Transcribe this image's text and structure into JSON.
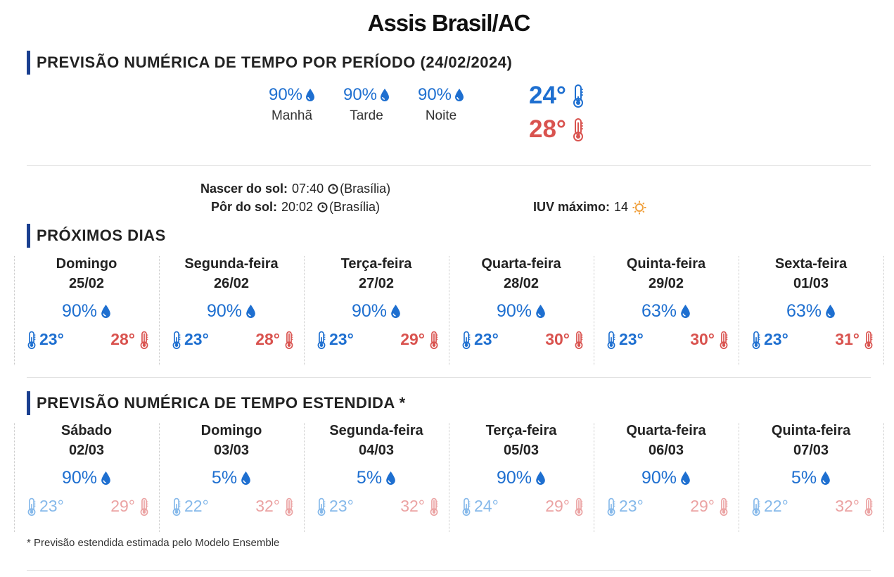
{
  "title": "Assis Brasil/AC",
  "sections": {
    "periodo": "PREVISÃO NUMÉRICA DE TEMPO POR PERÍODO (24/02/2024)",
    "proximos": "PRÓXIMOS DIAS",
    "estendida": "PREVISÃO NUMÉRICA DE TEMPO ESTENDIDA *"
  },
  "periods": [
    {
      "pct": "90%",
      "name": "Manhã"
    },
    {
      "pct": "90%",
      "name": "Tarde"
    },
    {
      "pct": "90%",
      "name": "Noite"
    }
  ],
  "today": {
    "min": "24°",
    "max": "28°"
  },
  "sun": {
    "rise_label": "Nascer do sol:",
    "rise_time": "07:40",
    "rise_tz": "(Brasília)",
    "set_label": "Pôr do sol:",
    "set_time": "20:02",
    "set_tz": "(Brasília)"
  },
  "uv": {
    "label": "IUV máximo:",
    "value": "14"
  },
  "next_days": [
    {
      "day": "Domingo",
      "date": "25/02",
      "pct": "90%",
      "min": "23°",
      "max": "28°"
    },
    {
      "day": "Segunda-feira",
      "date": "26/02",
      "pct": "90%",
      "min": "23°",
      "max": "28°"
    },
    {
      "day": "Terça-feira",
      "date": "27/02",
      "pct": "90%",
      "min": "23°",
      "max": "29°"
    },
    {
      "day": "Quarta-feira",
      "date": "28/02",
      "pct": "90%",
      "min": "23°",
      "max": "30°"
    },
    {
      "day": "Quinta-feira",
      "date": "29/02",
      "pct": "63%",
      "min": "23°",
      "max": "30°"
    },
    {
      "day": "Sexta-feira",
      "date": "01/03",
      "pct": "63%",
      "min": "23°",
      "max": "31°"
    }
  ],
  "extended_days": [
    {
      "day": "Sábado",
      "date": "02/03",
      "pct": "90%",
      "min": "23°",
      "max": "29°"
    },
    {
      "day": "Domingo",
      "date": "03/03",
      "pct": "5%",
      "min": "22°",
      "max": "32°"
    },
    {
      "day": "Segunda-feira",
      "date": "04/03",
      "pct": "5%",
      "min": "23°",
      "max": "32°"
    },
    {
      "day": "Terça-feira",
      "date": "05/03",
      "pct": "90%",
      "min": "24°",
      "max": "29°"
    },
    {
      "day": "Quarta-feira",
      "date": "06/03",
      "pct": "90%",
      "min": "23°",
      "max": "29°"
    },
    {
      "day": "Quinta-feira",
      "date": "07/03",
      "pct": "5%",
      "min": "22°",
      "max": "32°"
    }
  ],
  "footnote": "* Previsão estendida estimada pelo Modelo Ensemble",
  "colors": {
    "blue": "#1e6fd0",
    "red": "#d9534f",
    "accent_bar": "#1a3f8f",
    "sun": "#f0a03c"
  },
  "icons": {
    "rain": "drop-icon",
    "min_temp": "thermometer-cold-icon",
    "max_temp": "thermometer-hot-icon",
    "clock": "clock-icon",
    "uv": "sun-icon"
  }
}
